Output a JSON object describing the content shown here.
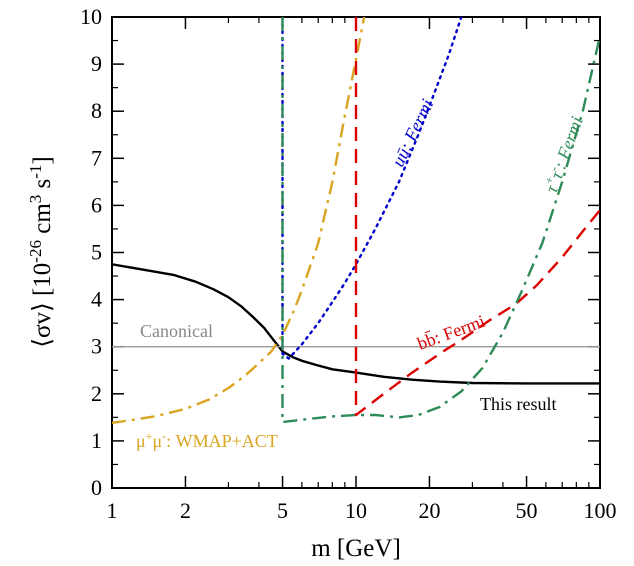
{
  "chart_data": {
    "type": "line",
    "xscale": "log",
    "xlim": [
      1,
      100
    ],
    "ylim": [
      0,
      10
    ],
    "xticks": [
      1,
      2,
      5,
      10,
      20,
      50,
      100
    ],
    "xtick_labels": [
      "1",
      "2",
      "5",
      "10",
      "20",
      "50",
      "100"
    ],
    "yticks": [
      0,
      1,
      2,
      3,
      4,
      5,
      6,
      7,
      8,
      9,
      10
    ],
    "ytick_labels": [
      "0",
      "1",
      "2",
      "3",
      "4",
      "5",
      "6",
      "7",
      "8",
      "9",
      "10"
    ],
    "xlabel": "m [GeV]",
    "ylabel": "⟨σv⟩ [10^-26 cm^3 s^-1]",
    "series": [
      {
        "name": "This result",
        "color": "#000000",
        "style": "solid",
        "x": [
          1,
          1.4,
          1.8,
          2.2,
          2.6,
          3.0,
          3.4,
          3.8,
          4.2,
          4.5,
          5.0,
          5.5,
          6.0,
          7.0,
          8.0,
          10.0,
          13.0,
          17.0,
          22.0,
          30.0,
          50.0,
          100.0
        ],
        "y": [
          4.75,
          4.62,
          4.52,
          4.38,
          4.22,
          4.05,
          3.85,
          3.62,
          3.4,
          3.2,
          2.9,
          2.78,
          2.7,
          2.6,
          2.52,
          2.45,
          2.36,
          2.3,
          2.26,
          2.23,
          2.22,
          2.22
        ]
      },
      {
        "name": "Canonical",
        "color": "#999999",
        "style": "solid",
        "x": [
          1,
          100
        ],
        "y": [
          3,
          3
        ]
      },
      {
        "name": "μ+μ-: WMAP+ACT",
        "color": "#D9A520",
        "style": "dashdot",
        "x": [
          1,
          1.5,
          2.0,
          2.5,
          3.0,
          3.5,
          4.0,
          4.5,
          5.0,
          5.5,
          6.0,
          7.0,
          8.0,
          9.0,
          10.0,
          10.8
        ],
        "y": [
          1.38,
          1.52,
          1.68,
          1.88,
          2.12,
          2.38,
          2.65,
          2.9,
          3.25,
          3.7,
          4.2,
          5.2,
          6.5,
          7.9,
          9.1,
          10.0
        ]
      },
      {
        "name": "uū: Fermi",
        "color": "#0000CC",
        "style": "dotted",
        "x": [
          5.0,
          5.0,
          5.3,
          6.0,
          7.0,
          8.0,
          9.0,
          10.0,
          12.0,
          15.0,
          18.0,
          21.0,
          24.0,
          27.0
        ],
        "y": [
          10.0,
          2.85,
          2.75,
          3.05,
          3.5,
          3.95,
          4.35,
          4.75,
          5.5,
          6.5,
          7.5,
          8.4,
          9.2,
          10.0
        ]
      },
      {
        "name": "bb̄: Fermi",
        "color": "#DD0000",
        "style": "dashed",
        "x": [
          10.0,
          10.0,
          10.0,
          13.0,
          17.0,
          22.0,
          28.0,
          35.0,
          45.0,
          55.0,
          70.0,
          85.0,
          100.0
        ],
        "y": [
          10.0,
          1.55,
          1.55,
          2.0,
          2.45,
          2.85,
          3.2,
          3.55,
          3.9,
          4.3,
          4.9,
          5.45,
          5.9
        ]
      },
      {
        "name": "τ+τ-: Fermi",
        "color": "#2E8B57",
        "style": "dashdot",
        "x": [
          5.0,
          5.0,
          5.0,
          6.0,
          8.0,
          10.0,
          12.0,
          15.0,
          18.0,
          22.0,
          27.0,
          33.0,
          40.0,
          48.0,
          58.0,
          70.0,
          85.0,
          100.0
        ],
        "y": [
          10.0,
          1.4,
          1.4,
          1.45,
          1.52,
          1.55,
          1.55,
          1.5,
          1.55,
          1.72,
          2.05,
          2.55,
          3.3,
          4.2,
          5.2,
          6.5,
          8.0,
          9.6
        ]
      }
    ],
    "annotations": {
      "this_result": "This result",
      "canonical": "Canonical",
      "mumu": "μ+μ-: WMAP+ACT",
      "uu": "uū: Fermi",
      "bb": "bb̄: Fermi",
      "tautau": "τ+τ-: Fermi"
    }
  }
}
